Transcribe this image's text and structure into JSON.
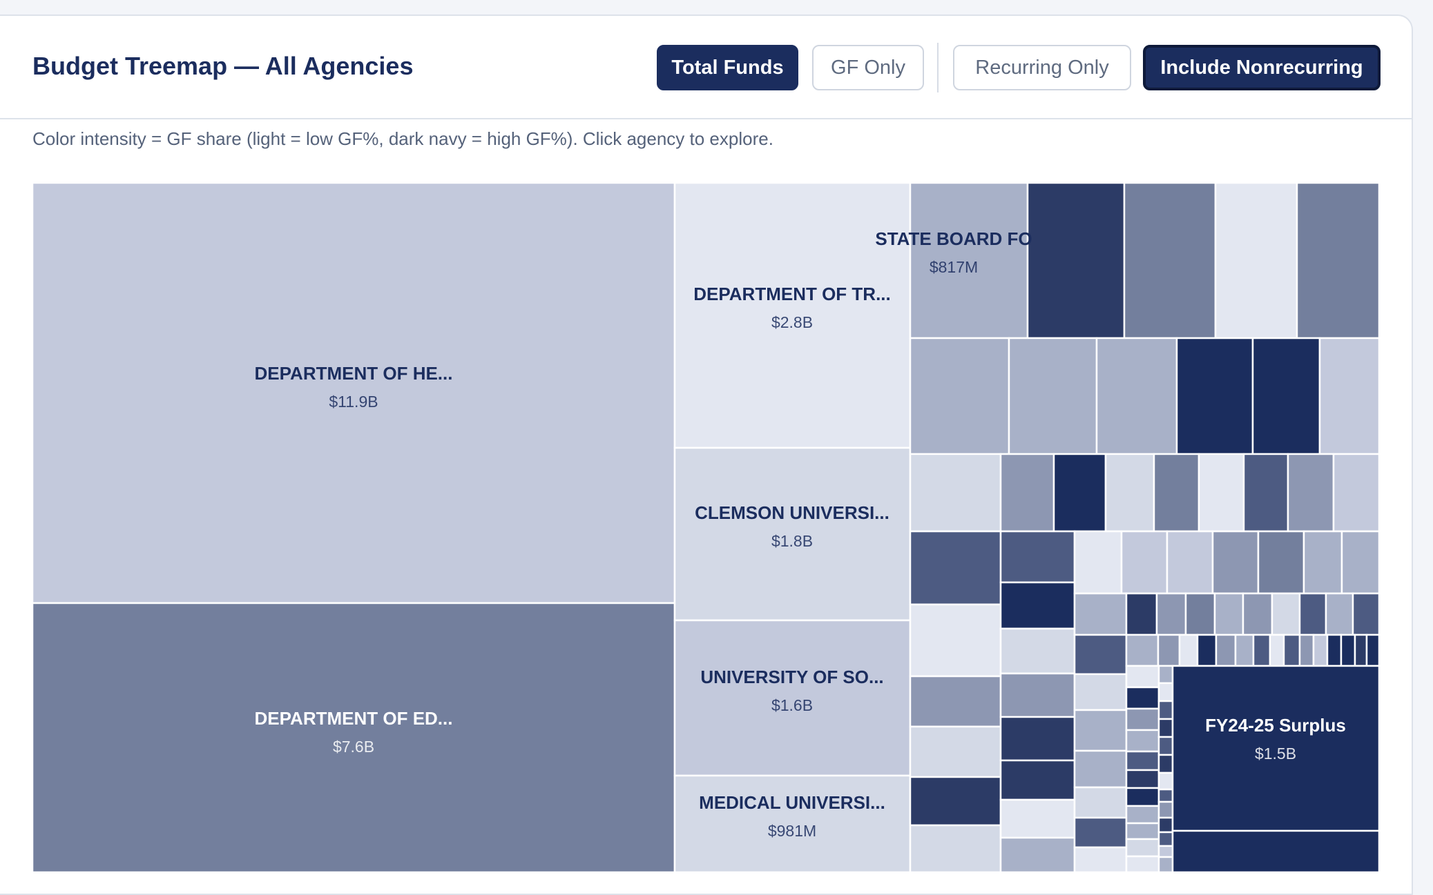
{
  "header": {
    "title": "Budget Treemap — All Agencies",
    "buttons": {
      "total_funds": "Total Funds",
      "gf_only": "GF Only",
      "recurring_only": "Recurring Only",
      "include_nonrecurring": "Include Nonrecurring"
    }
  },
  "hint": "Color intensity = GF share (light = low GF%, dark navy = high GF%). Click agency to explore.",
  "colors": {
    "navy": "#1b2d5e",
    "c1": "#e3e7f1",
    "c2": "#d3d9e6",
    "c3": "#c3c9dc",
    "c4": "#a8b1c8",
    "c5": "#8d97b2",
    "c6": "#737f9d",
    "c7": "#4d5b82",
    "c8": "#2c3b66"
  },
  "chart_data": {
    "type": "treemap",
    "metric": "Total Funds",
    "color_encoding": "GF share",
    "labeled_cells": [
      {
        "label": "DEPARTMENT OF HE...",
        "value": "$11.9B",
        "value_musd": 11900
      },
      {
        "label": "DEPARTMENT OF ED...",
        "value": "$7.6B",
        "value_musd": 7600
      },
      {
        "label": "DEPARTMENT OF TR...",
        "value": "$2.8B",
        "value_musd": 2800
      },
      {
        "label": "CLEMSON UNIVERSI...",
        "value": "$1.8B",
        "value_musd": 1800
      },
      {
        "label": "UNIVERSITY OF SO...",
        "value": "$1.6B",
        "value_musd": 1600
      },
      {
        "label": "MEDICAL UNIVERSI...",
        "value": "$981M",
        "value_musd": 981
      },
      {
        "label": "STATE BOARD FO",
        "value": "$817M",
        "value_musd": 817
      },
      {
        "label": "FY24-25 Surplus",
        "value": "$1.5B",
        "value_musd": 1500
      }
    ]
  }
}
